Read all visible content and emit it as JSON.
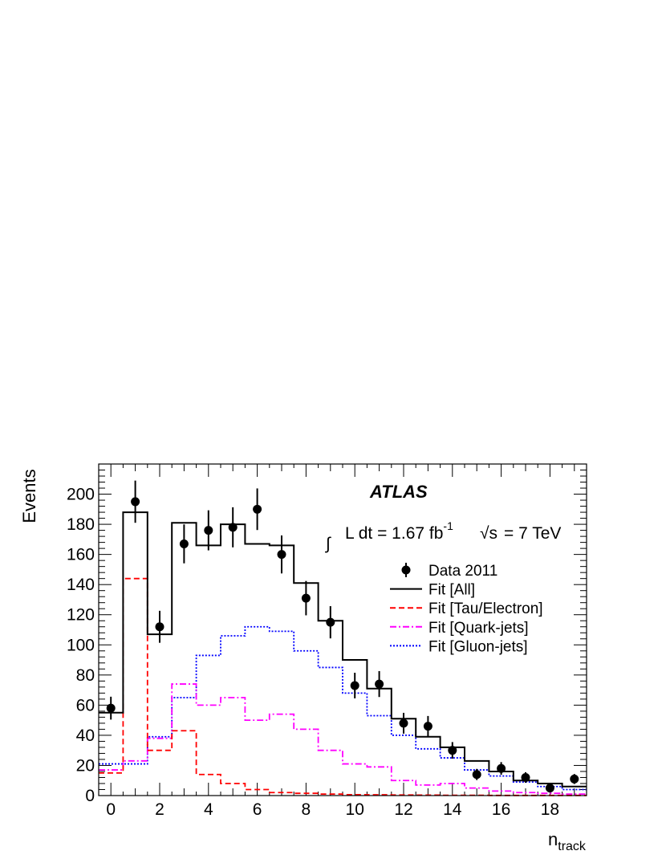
{
  "chart_data": {
    "type": "histogram",
    "experiment_label": "ATLAS",
    "luminosity": {
      "integral_symbol": "∫",
      "text": "L dt = 1.67 fb",
      "superscript": "-1",
      "sqrt_symbol": "√s",
      "energy_text": "= 7 TeV"
    },
    "xlabel": "n",
    "xlabel_sub": "track",
    "ylabel": "Events",
    "xlim": [
      -0.5,
      19.5
    ],
    "ylim": [
      0,
      220
    ],
    "x_ticks": [
      0,
      2,
      4,
      6,
      8,
      10,
      12,
      14,
      16,
      18
    ],
    "y_ticks": [
      0,
      20,
      40,
      60,
      80,
      100,
      120,
      140,
      160,
      180,
      200
    ],
    "bins": [
      0,
      1,
      2,
      3,
      4,
      5,
      6,
      7,
      8,
      9,
      10,
      11,
      12,
      13,
      14,
      15,
      16,
      17,
      18,
      19
    ],
    "data": {
      "name": "Data 2011",
      "values": [
        58,
        195,
        112,
        167,
        176,
        178,
        190,
        160,
        131,
        115,
        73,
        74,
        48,
        46,
        30,
        14,
        18,
        12,
        5,
        11
      ],
      "errors": [
        7.6,
        14,
        10.6,
        12.9,
        13.3,
        13.3,
        13.8,
        12.6,
        11.4,
        10.7,
        8.5,
        8.6,
        6.9,
        6.8,
        5.5,
        3.7,
        4.2,
        3.5,
        2.2,
        3.3
      ]
    },
    "series": [
      {
        "name": "Fit [All]",
        "color": "#000000",
        "style": "solid",
        "values": [
          55,
          188,
          107,
          181,
          166,
          180,
          167,
          166,
          141,
          116,
          90,
          71,
          51,
          39,
          32,
          23,
          16,
          10,
          8,
          6
        ]
      },
      {
        "name": "Fit [Tau/Electron]",
        "color": "#ff0000",
        "style": "dashed",
        "values": [
          15,
          144,
          30,
          43,
          14,
          8,
          4,
          2,
          1.5,
          1,
          0.6,
          0.5,
          0.4,
          0.3,
          0.2,
          0.2,
          0.1,
          0.1,
          0.1,
          0.1
        ]
      },
      {
        "name": "Fit [Quark-jets]",
        "color": "#ff00ff",
        "style": "dashdot",
        "values": [
          17,
          23,
          38,
          74,
          60,
          65,
          50,
          54,
          44,
          30,
          21,
          19,
          10,
          7,
          8,
          5,
          3,
          2,
          1.5,
          1
        ]
      },
      {
        "name": "Fit [Gluon-jets]",
        "color": "#0000ff",
        "style": "dotted",
        "values": [
          21,
          21,
          39,
          65,
          93,
          106,
          112,
          109,
          96,
          85,
          68,
          53,
          40,
          31,
          25,
          17,
          13,
          9,
          6,
          4
        ]
      }
    ],
    "legend_position": "upper-right"
  }
}
